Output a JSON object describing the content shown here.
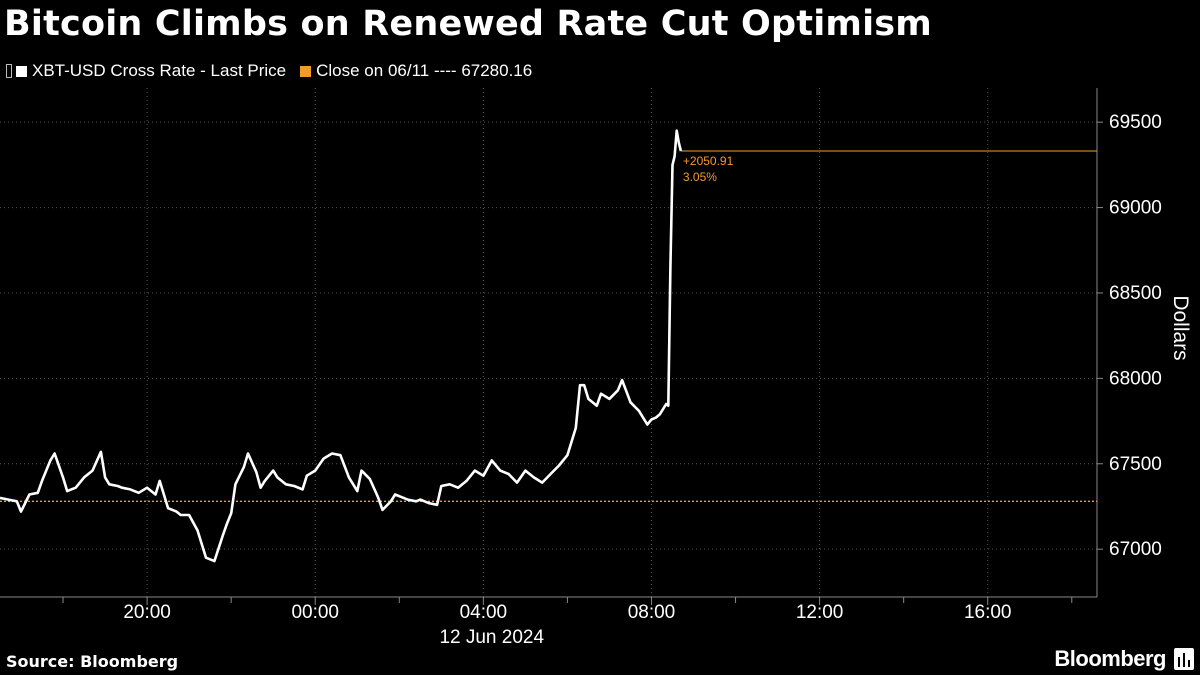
{
  "title": "Bitcoin Climbs on Renewed Rate Cut Optimism",
  "legend": {
    "series_label": "XBT-USD Cross Rate - Last Price",
    "close_label": "Close on 06/11 ---- 67280.16"
  },
  "colors": {
    "background": "#000000",
    "price": "#ffffff",
    "close": "#f39a2d",
    "grid": "#555555"
  },
  "footer": {
    "source": "Source: Bloomberg",
    "brand": "Bloomberg",
    "brand_icon": "bloomberg-terminal-icon"
  },
  "chart_data": {
    "type": "line",
    "ylabel": "Dollars",
    "ylim": [
      66720,
      69700
    ],
    "yticks": [
      67000,
      67500,
      68000,
      68500,
      69000,
      69500
    ],
    "xlim": [
      16.5,
      42.6
    ],
    "x_unit": "hours since 00:00 on 11 Jun 2024",
    "xticks": [
      {
        "x": 20,
        "label": "20:00"
      },
      {
        "x": 24,
        "label": "00:00"
      },
      {
        "x": 28,
        "label": "04:00"
      },
      {
        "x": 32,
        "label": "08:00"
      },
      {
        "x": 36,
        "label": "12:00"
      },
      {
        "x": 40,
        "label": "16:00"
      }
    ],
    "minor_xticks": [
      18,
      22,
      26,
      30,
      34,
      38,
      42
    ],
    "date_label": "12 Jun 2024",
    "reference_line": {
      "name": "Close on 06/11",
      "value": 67280.16
    },
    "annotation": {
      "change": "+2050.91",
      "pct": "3.05%",
      "level": 69331
    },
    "series": [
      {
        "name": "XBT-USD Cross Rate - Last Price",
        "x": [
          16.5,
          16.7,
          16.9,
          17.0,
          17.2,
          17.4,
          17.5,
          17.7,
          17.8,
          18.0,
          18.1,
          18.3,
          18.5,
          18.7,
          18.9,
          19.0,
          19.1,
          19.3,
          19.4,
          19.6,
          19.8,
          20.0,
          20.2,
          20.3,
          20.5,
          20.7,
          20.8,
          21.0,
          21.2,
          21.4,
          21.6,
          21.8,
          21.9,
          22.0,
          22.1,
          22.3,
          22.4,
          22.6,
          22.7,
          22.8,
          23.0,
          23.1,
          23.3,
          23.5,
          23.7,
          23.8,
          24.0,
          24.2,
          24.4,
          24.6,
          24.8,
          25.0,
          25.1,
          25.3,
          25.5,
          25.6,
          25.8,
          25.9,
          26.0,
          26.2,
          26.4,
          26.5,
          26.7,
          26.9,
          27.0,
          27.2,
          27.4,
          27.6,
          27.8,
          28.0,
          28.2,
          28.4,
          28.6,
          28.8,
          29.0,
          29.2,
          29.4,
          29.6,
          29.8,
          30.0,
          30.2,
          30.3,
          30.4,
          30.5,
          30.7,
          30.8,
          31.0,
          31.2,
          31.3,
          31.5,
          31.7,
          31.9,
          32.0,
          32.1,
          32.2,
          32.35,
          32.4,
          32.45,
          32.5,
          32.55,
          32.6,
          32.65,
          32.7
        ],
        "values": [
          67300,
          67290,
          67280,
          67220,
          67320,
          67330,
          67400,
          67520,
          67560,
          67420,
          67340,
          67360,
          67420,
          67460,
          67570,
          67420,
          67380,
          67370,
          67360,
          67350,
          67330,
          67360,
          67320,
          67400,
          67240,
          67220,
          67200,
          67200,
          67110,
          66950,
          66930,
          67080,
          67150,
          67210,
          67380,
          67480,
          67560,
          67450,
          67360,
          67400,
          67460,
          67420,
          67380,
          67370,
          67350,
          67430,
          67460,
          67530,
          67560,
          67550,
          67420,
          67340,
          67460,
          67410,
          67300,
          67230,
          67280,
          67320,
          67310,
          67290,
          67280,
          67290,
          67270,
          67260,
          67370,
          67380,
          67360,
          67400,
          67460,
          67430,
          67520,
          67460,
          67440,
          67390,
          67460,
          67420,
          67390,
          67440,
          67490,
          67550,
          67710,
          67960,
          67960,
          67880,
          67840,
          67910,
          67880,
          67930,
          67990,
          67860,
          67810,
          67730,
          67760,
          67770,
          67790,
          67850,
          67840,
          68650,
          69250,
          69300,
          69450,
          69380,
          69331
        ]
      }
    ]
  }
}
